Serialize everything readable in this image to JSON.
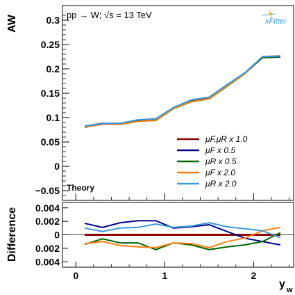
{
  "chart_data": [
    {
      "type": "line",
      "panel": "main",
      "ylabel": "AW",
      "xlabel": "",
      "annotation": "pp → W; √s = 13 TeV",
      "label": "Theory",
      "logo": "xFitter",
      "ylim": [
        -0.07,
        0.33
      ],
      "xlim": [
        -0.15,
        2.45
      ],
      "yticks": [
        "0.3",
        "0.25",
        "0.2",
        "0.15",
        "0.1",
        "0.05",
        "0",
        "−0.05"
      ],
      "ytick_values": [
        0.3,
        0.25,
        0.2,
        0.15,
        0.1,
        0.05,
        0,
        -0.05
      ],
      "legend_position": "lower-right",
      "x": [
        0.1,
        0.3,
        0.5,
        0.7,
        0.9,
        1.1,
        1.3,
        1.5,
        1.7,
        1.9,
        2.1,
        2.3
      ],
      "series": [
        {
          "name": "μF,μR  x  1.0",
          "color": "#8b0000",
          "values": [
            0.0815,
            0.087,
            0.0875,
            0.0935,
            0.096,
            0.1195,
            0.134,
            0.1405,
            0.1665,
            0.1915,
            0.2245,
            0.226
          ]
        },
        {
          "name": "μF  x  0.5",
          "color": "#00008b",
          "values": [
            0.0825,
            0.088,
            0.088,
            0.095,
            0.0975,
            0.1205,
            0.135,
            0.1415,
            0.1665,
            0.191,
            0.223,
            0.2245
          ]
        },
        {
          "name": "μR  x  0.5",
          "color": "#006400",
          "values": [
            0.08,
            0.0865,
            0.0865,
            0.0925,
            0.094,
            0.1185,
            0.1325,
            0.1385,
            0.164,
            0.19,
            0.2235,
            0.2255
          ]
        },
        {
          "name": "μF  x  2.0",
          "color": "#ff7f0e",
          "values": [
            0.0805,
            0.086,
            0.086,
            0.092,
            0.0945,
            0.119,
            0.133,
            0.139,
            0.165,
            0.1905,
            0.2255,
            0.227
          ]
        },
        {
          "name": "μR  x  2.0",
          "color": "#3b9ad9",
          "values": [
            0.0825,
            0.0875,
            0.0885,
            0.0955,
            0.0975,
            0.121,
            0.1365,
            0.142,
            0.1675,
            0.192,
            0.225,
            0.2265
          ]
        }
      ]
    },
    {
      "type": "line",
      "panel": "ratio",
      "ylabel": "Difference",
      "xlabel": "y_w",
      "ylim": [
        -0.0048,
        0.0048
      ],
      "xlim": [
        -0.15,
        2.45
      ],
      "yticks": [
        "0.004",
        "0.002",
        "0",
        "0.002",
        "0.004"
      ],
      "ytick_values": [
        0.004,
        0.002,
        0,
        -0.002,
        -0.004
      ],
      "xticks": [
        "0",
        "1",
        "2"
      ],
      "xtick_values": [
        0,
        1,
        2
      ],
      "x": [
        0.1,
        0.3,
        0.5,
        0.7,
        0.9,
        1.1,
        1.3,
        1.5,
        1.7,
        1.9,
        2.1,
        2.3
      ],
      "series": [
        {
          "name": "μF,μR  x  1.0",
          "color": "#8b0000",
          "values": [
            0,
            0,
            0,
            0,
            0,
            0,
            0,
            0,
            0,
            0,
            0,
            0
          ]
        },
        {
          "name": "μF  x  0.5",
          "color": "#00008b",
          "values": [
            0.0017,
            0.0011,
            0.0018,
            0.0021,
            0.0021,
            0.001,
            0.0012,
            0.0015,
            0.0005,
            -0.0005,
            -0.001,
            -0.0015
          ]
        },
        {
          "name": "μR  x  0.5",
          "color": "#006400",
          "values": [
            -0.0014,
            -0.0006,
            -0.0012,
            -0.0012,
            -0.0022,
            -0.0012,
            -0.0015,
            -0.0022,
            -0.0018,
            -0.0015,
            -0.001,
            0.0003
          ]
        },
        {
          "name": "μF  x  2.0",
          "color": "#ff7f0e",
          "values": [
            -0.0013,
            -0.001,
            -0.0016,
            -0.0018,
            -0.0019,
            -0.0012,
            -0.0013,
            -0.0019,
            -0.001,
            -0.0005,
            0.0006,
            0.0011
          ]
        },
        {
          "name": "μR  x  2.0",
          "color": "#3b9ad9",
          "values": [
            0.001,
            0.0005,
            0.001,
            0.0011,
            0.0016,
            0.0011,
            0.0013,
            0.0018,
            0.0012,
            0.0009,
            0.0006,
            -0.0004
          ]
        }
      ]
    }
  ]
}
